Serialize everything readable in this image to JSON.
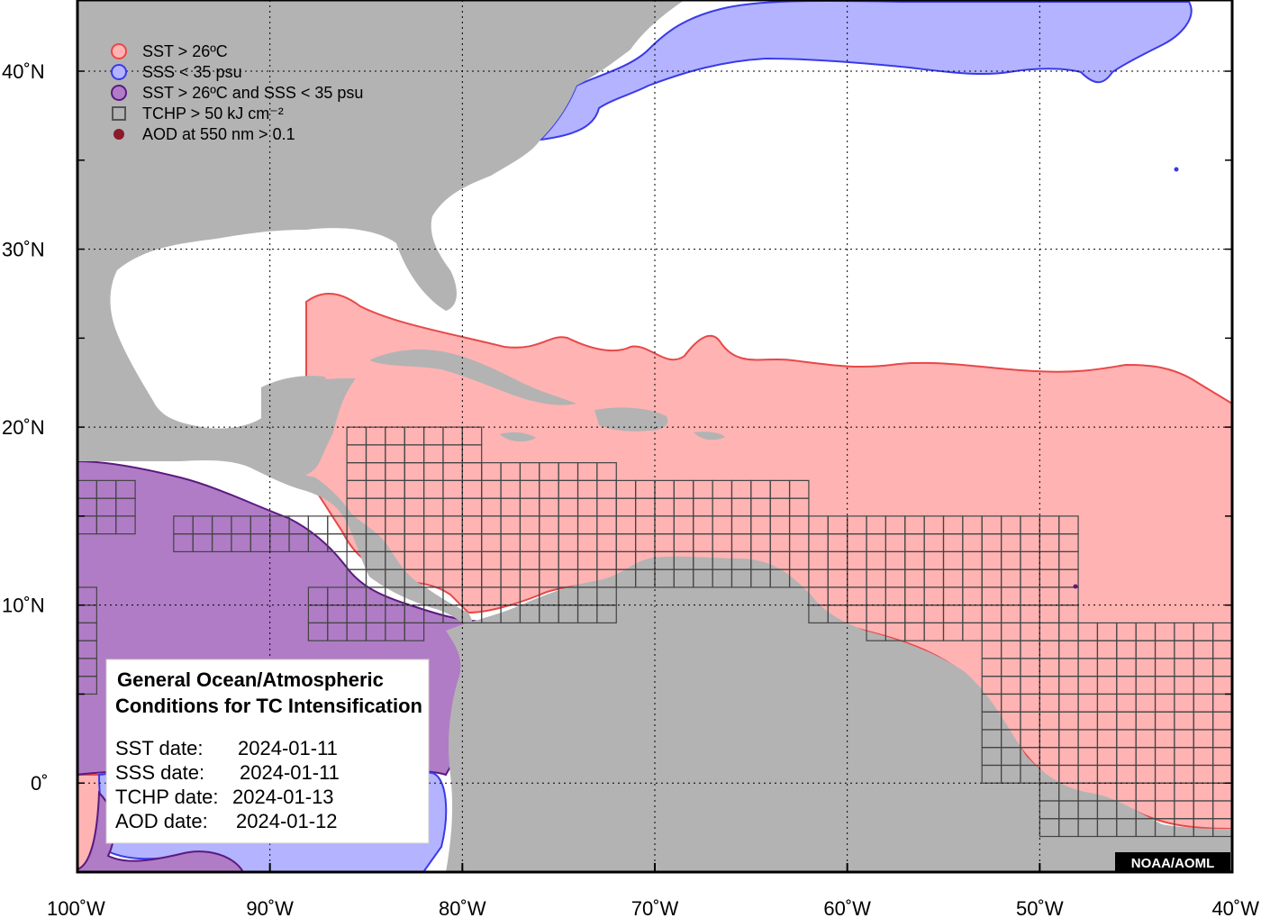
{
  "map": {
    "lon_range": [
      -100,
      -40
    ],
    "lat_range": [
      -5,
      44
    ],
    "lon_ticks": [
      {
        "value": -100,
        "label": "100˚W"
      },
      {
        "value": -90,
        "label": "90˚W"
      },
      {
        "value": -80,
        "label": "80˚W"
      },
      {
        "value": -70,
        "label": "70˚W"
      },
      {
        "value": -60,
        "label": "60˚W"
      },
      {
        "value": -50,
        "label": "50˚W"
      },
      {
        "value": -40,
        "label": "40˚W"
      }
    ],
    "lat_ticks": [
      {
        "value": 40,
        "label": "40˚N"
      },
      {
        "value": 30,
        "label": "30˚N"
      },
      {
        "value": 20,
        "label": "20˚N"
      },
      {
        "value": 10,
        "label": "10˚N"
      },
      {
        "value": 0,
        "label": "0˚"
      }
    ],
    "gridlines": "dotted",
    "colors": {
      "land": "#b3b3b3",
      "ocean": "#ffffff",
      "sst": "#ffb3b3",
      "sst_edge": "#e84848",
      "sss": "#b3b3ff",
      "sss_edge": "#3a3ae8",
      "both": "#b07cc6",
      "both_edge": "#5a1a80",
      "tchp_edge": "#444444",
      "aod": "#8b1a2a"
    }
  },
  "legend": {
    "items": [
      {
        "key": "sst",
        "label": "SST > 26ºC",
        "symbol": "circle",
        "fill": "#ffb3b3",
        "stroke": "#e84848"
      },
      {
        "key": "sss",
        "label": "SSS < 35 psu",
        "symbol": "circle",
        "fill": "#b3b3ff",
        "stroke": "#3a3ae8"
      },
      {
        "key": "both",
        "label": "SST > 26ºC and SSS < 35 psu",
        "symbol": "circle",
        "fill": "#b07cc6",
        "stroke": "#5a1a80"
      },
      {
        "key": "tchp",
        "label": "TCHP > 50 kJ cm⁻²",
        "symbol": "square",
        "fill": "none",
        "stroke": "#555555"
      },
      {
        "key": "aod",
        "label": "AOD at 550 nm > 0.1",
        "symbol": "dot",
        "fill": "#8b1a2a",
        "stroke": "#8b1a2a"
      }
    ]
  },
  "info_box": {
    "title_line1": "General Ocean/Atmospheric",
    "title_line2": "Conditions for TC Intensification",
    "rows": [
      {
        "label": "SST date:",
        "value": "2024-01-11"
      },
      {
        "label": "SSS date:",
        "value": "2024-01-11"
      },
      {
        "label": "TCHP date:",
        "value": "2024-01-13"
      },
      {
        "label": "AOD date:",
        "value": "2024-01-12"
      }
    ]
  },
  "credit": "NOAA/AOML"
}
